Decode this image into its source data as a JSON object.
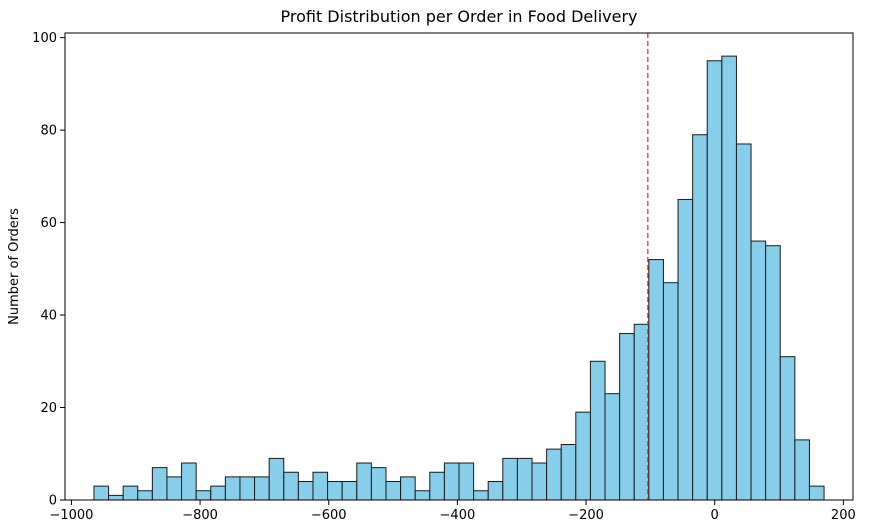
{
  "chart_data": {
    "type": "bar",
    "subtype": "histogram",
    "title": "Profit Distribution per Order in Food Delivery",
    "xlabel": "",
    "ylabel": "Number of Orders",
    "xlim": [
      -1010,
      215
    ],
    "ylim": [
      0,
      101
    ],
    "x_ticks": [
      -1000,
      -800,
      -600,
      -400,
      -200,
      0,
      200
    ],
    "x_tick_labels": [
      "−1000",
      "−800",
      "−600",
      "−400",
      "−200",
      "0",
      "200"
    ],
    "y_ticks": [
      0,
      20,
      40,
      60,
      80,
      100
    ],
    "y_tick_labels": [
      "0",
      "20",
      "40",
      "60",
      "80",
      "100"
    ],
    "bin_start": -965,
    "bin_width": 22.7,
    "values": [
      3,
      1,
      3,
      2,
      7,
      5,
      8,
      2,
      3,
      5,
      5,
      5,
      9,
      6,
      4,
      6,
      4,
      4,
      8,
      7,
      4,
      5,
      2,
      6,
      8,
      8,
      2,
      4,
      9,
      9,
      8,
      11,
      12,
      19,
      30,
      23,
      36,
      38,
      52,
      47,
      65,
      79,
      95,
      96,
      77,
      56,
      55,
      31,
      13,
      3
    ],
    "reference_line": {
      "x": -104,
      "style": "dashed",
      "color": "#e8383b"
    },
    "bar_color": "#87ceeb",
    "bar_edge_color": "#1a1a1a",
    "grid": false,
    "legend": "none"
  }
}
